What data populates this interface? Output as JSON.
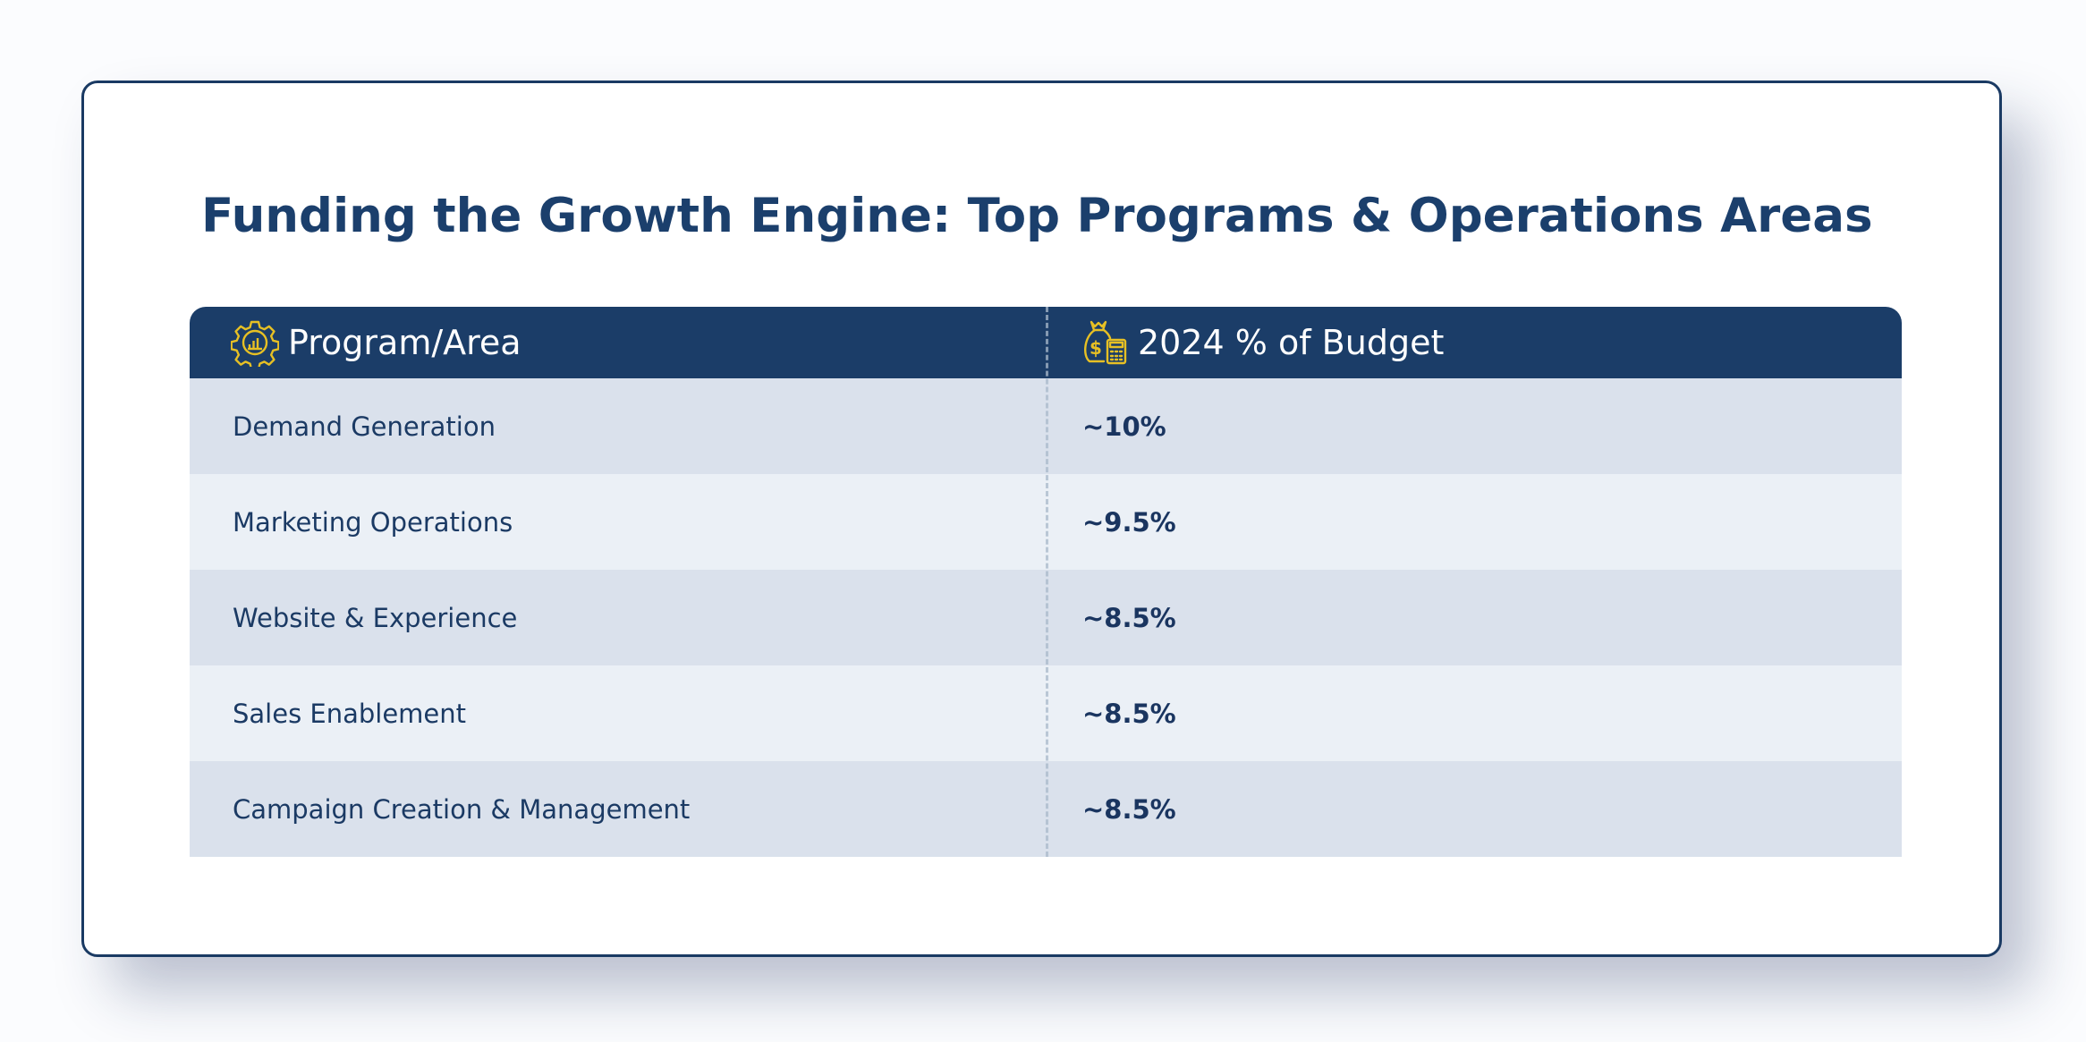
{
  "title": "Funding the Growth Engine: Top Programs & Operations Areas",
  "table": {
    "headers": [
      {
        "label": "Program/Area",
        "icon": "gear-chart-icon"
      },
      {
        "label": "2024 % of Budget",
        "icon": "money-bag-calculator-icon"
      }
    ],
    "rows": [
      {
        "program": "Demand Generation",
        "budget": "~10%"
      },
      {
        "program": "Marketing Operations",
        "budget": "~9.5%"
      },
      {
        "program": "Website & Experience",
        "budget": "~8.5%"
      },
      {
        "program": "Sales Enablement",
        "budget": "~8.5%"
      },
      {
        "program": "Campaign Creation & Management",
        "budget": "~8.5%"
      }
    ]
  },
  "colors": {
    "header_bg": "#1b3d68",
    "icon_accent": "#e7c024",
    "row_odd": "#dae1ec",
    "row_even": "#ebf0f6",
    "text": "#1b3a64"
  }
}
